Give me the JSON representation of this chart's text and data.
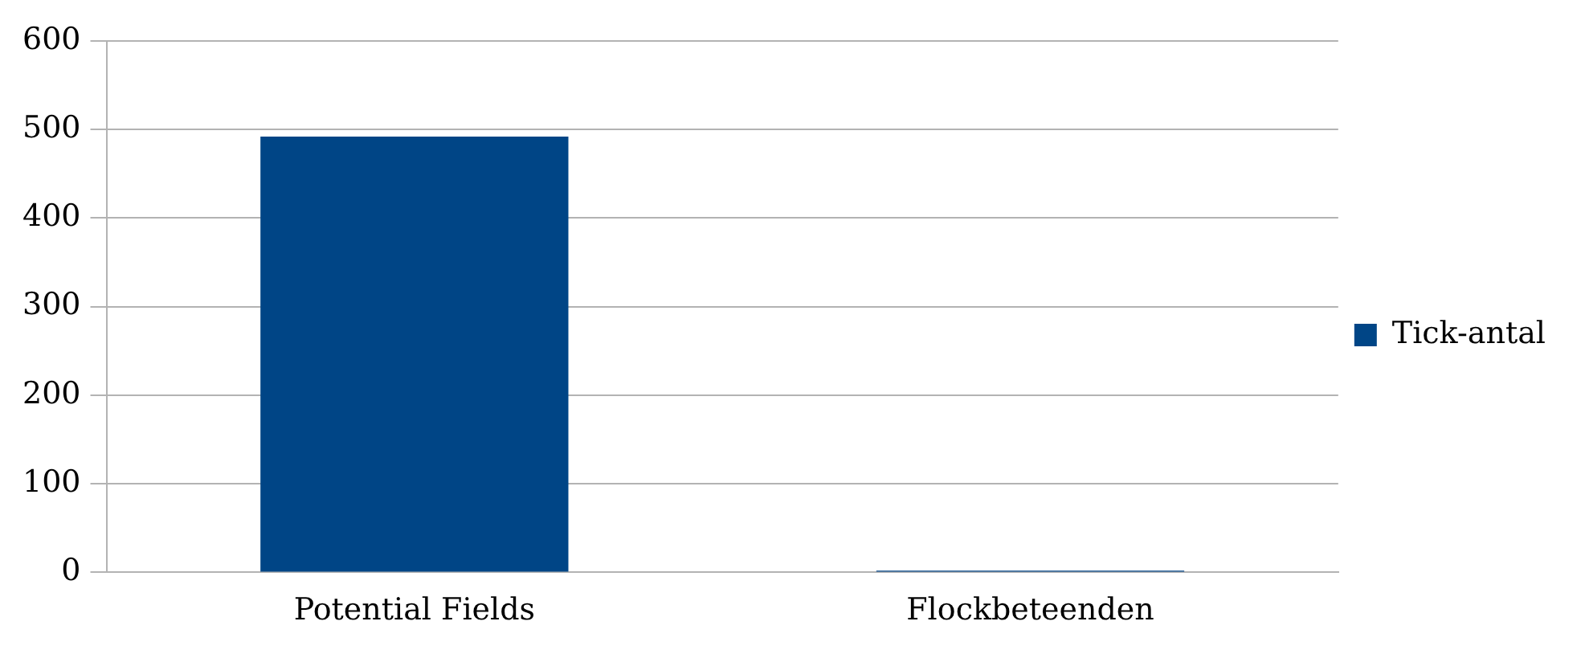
{
  "chart_data": {
    "type": "bar",
    "categories": [
      "Potential Fields",
      "Flockbeteenden"
    ],
    "series": [
      {
        "name": "Tick-antal",
        "color": "#004586",
        "values": [
          492,
          2
        ]
      }
    ],
    "ylim": [
      0,
      600
    ],
    "yticks": [
      0,
      100,
      200,
      300,
      400,
      500,
      600
    ],
    "grid": "y",
    "legend": "right"
  }
}
